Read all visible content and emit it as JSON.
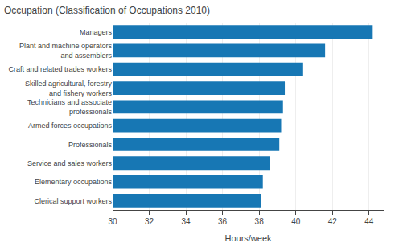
{
  "chart_data": {
    "type": "bar",
    "orientation": "horizontal",
    "title": "Occupation (Classification of Occupations 2010)",
    "xlabel": "Hours/week",
    "categories": [
      "Clerical support workers",
      "Elementary occupations",
      "Service and sales workers",
      "Professionals",
      "Armed forces occupations",
      "Technicians and associate\nprofessionals",
      "Skilled agricultural, forestry\nand fishery workers",
      "Craft and related trades workers",
      "Plant and machine operators\nand assemblers",
      "Managers"
    ],
    "values": [
      38.1,
      38.2,
      38.6,
      39.1,
      39.2,
      39.3,
      39.4,
      40.4,
      41.6,
      44.2
    ],
    "color": "#1777b4",
    "xlim": [
      30,
      44.8
    ],
    "xticks": [
      30,
      32,
      34,
      36,
      38,
      40,
      42,
      44
    ],
    "grid": true
  }
}
